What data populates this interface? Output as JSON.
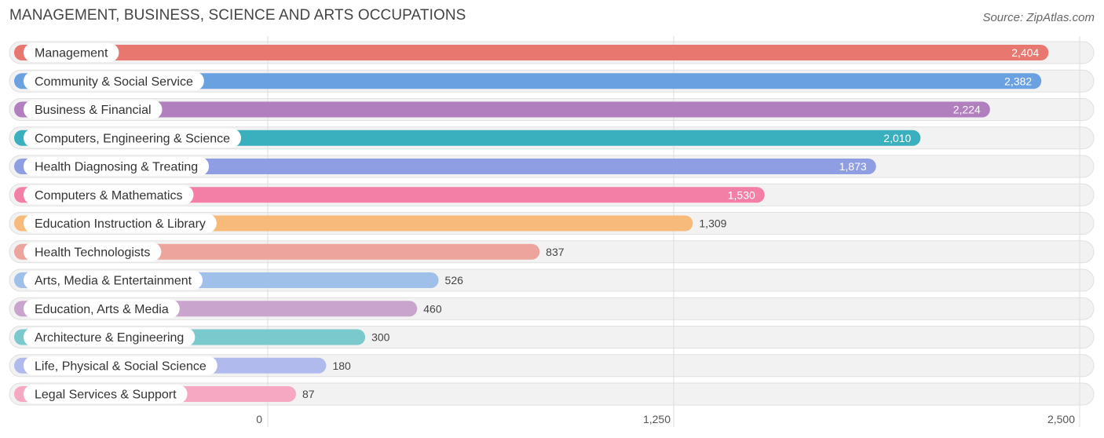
{
  "title": "MANAGEMENT, BUSINESS, SCIENCE AND ARTS OCCUPATIONS",
  "source": "Source: ZipAtlas.com",
  "chart_data": {
    "type": "bar",
    "orientation": "horizontal",
    "title": "MANAGEMENT, BUSINESS, SCIENCE AND ARTS OCCUPATIONS",
    "xlim": [
      0,
      2500
    ],
    "grid": true,
    "ticks": [
      {
        "value": 0,
        "label": "0"
      },
      {
        "value": 1250,
        "label": "1,250"
      },
      {
        "value": 2500,
        "label": "2,500"
      }
    ],
    "categories": [
      "Management",
      "Community & Social Service",
      "Business & Financial",
      "Computers, Engineering & Science",
      "Health Diagnosing & Treating",
      "Computers & Mathematics",
      "Education Instruction & Library",
      "Health Technologists",
      "Arts, Media & Entertainment",
      "Education, Arts & Media",
      "Architecture & Engineering",
      "Life, Physical & Social Science",
      "Legal Services & Support"
    ],
    "values": [
      2404,
      2382,
      2224,
      2010,
      1873,
      1530,
      1309,
      837,
      526,
      460,
      300,
      180,
      87
    ],
    "value_labels": [
      "2,404",
      "2,382",
      "2,224",
      "2,010",
      "1,873",
      "1,530",
      "1,309",
      "837",
      "526",
      "460",
      "300",
      "180",
      "87"
    ],
    "colors": [
      "#e8776f",
      "#6aa1e0",
      "#b17fbd",
      "#3aafbe",
      "#8f9ee3",
      "#f37fa6",
      "#f8ba7b",
      "#eda49c",
      "#9fc0e8",
      "#c9a4cc",
      "#79c9cd",
      "#b1baed",
      "#f6a8c3"
    ]
  }
}
